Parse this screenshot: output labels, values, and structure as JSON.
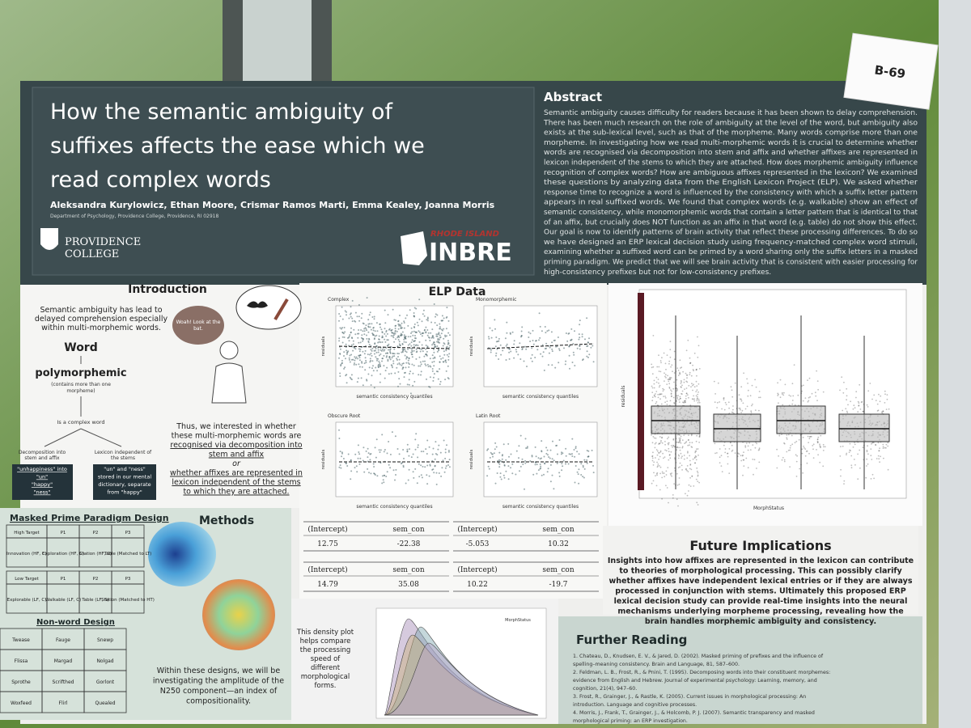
{
  "sign": "B-69",
  "header": {
    "title_lines": [
      "How the semantic ambiguity of",
      "suffixes affects the ease which we",
      "read complex words"
    ],
    "authors": "Aleksandra Kurylowicz, Ethan Moore, Crismar Ramos Marti, Emma Kealey, Joanna Morris",
    "department": "Department of Psychology, Providence College, Providence, RI 02918",
    "college_logo": [
      "PROVIDENCE",
      "COLLEGE"
    ],
    "inbre_region": "RHODE ISLAND",
    "inbre_name": "INBRE"
  },
  "abstract": {
    "heading": "Abstract",
    "lines": [
      "Semantic ambiguity causes difficulty for readers because it has been shown to delay comprehension.",
      "There has been much research on the role of ambiguity at the level of the word, but ambiguity also",
      "exists at the sub-lexical level, such as that of the morpheme.  Many words comprise more than one",
      "morpheme.  In investigating how we read multi-morphemic words it is crucial to determine  whether",
      "words are recognised via  decomposition into stem and affix and whether  affixes are represented  in",
      "lexicon independent of the stems to which they are attached.  How does morphemic ambiguity influence",
      "recognition of complex words?  How are ambiguous affixes represented in the lexicon?  We examined",
      "these questions by analyzing data from the English Lexicon Project (ELP).  We asked whether",
      "response time to recognize a word is influenced by the consistency with which a suffix letter pattern",
      "appears in real suffixed words.  We found that complex words (e.g. walkable)  show an effect of",
      "semantic consistency, while monomorphemic words that contain a letter pattern that is identical to that",
      "of an affix, but crucially does NOT function as an affix in that word (e.g. table) do not show this effect.",
      "Our goal is now to identify patterns of brain activity that reflect these processing differences.  To do so",
      "we have designed an ERP lexical decision study using frequency-matched complex word stimuli,",
      "examining whether a suffixed word can be primed by a word sharing only the suffix letters in a masked",
      "priming paradigm.  We predict that we will see brain activity that is consistent with easier processing for",
      "high-consistency prefixes but not for low-consistency prefixes."
    ]
  },
  "introduction": {
    "heading": "Introduction",
    "lines": [
      "Semantic ambiguity has lead to",
      "delayed comprehension especially",
      "within multi-morphemic words."
    ],
    "bubble": [
      "Woah! Look at the",
      "bat."
    ],
    "word": "Word",
    "polymorphemic": "polymorphemic",
    "poly_note": [
      "(contains more than one",
      "morpheme)"
    ],
    "complex_word": "Is a complex word",
    "decomposition": [
      "Decomposition into",
      "stem and affix"
    ],
    "lexicon": [
      "Lexicon independent of",
      "the stems"
    ],
    "decomposition_box": [
      "\"unhappiness\" into",
      "\"un\"",
      "\"happy\"",
      "\"ness\""
    ],
    "lexicon_box": [
      "\"un\" and \"ness\"",
      "stored in our mental",
      "dictionary, separate",
      "from \"happy\""
    ],
    "right_lines": [
      "Thus, we interested in whether",
      "these multi-morphemic words are",
      "recognised via decomposition into",
      "stem and affix",
      "or",
      "whether affixes are represented  in",
      "lexicon independent of the stems",
      "to which they are attached."
    ]
  },
  "elp": {
    "heading": "ELP Data",
    "plots": [
      {
        "title": "Complex",
        "x_label": "semantic consistency quantiles",
        "y_label": "residuals"
      },
      {
        "title": "Monomorphemic",
        "x_label": "semantic consistency quantiles",
        "y_label": "residuals"
      },
      {
        "title": "Obscure Root",
        "x_label": "semantic consistency quantiles",
        "y_label": "residuals"
      },
      {
        "title": "Latin Root",
        "x_label": "semantic consistency quantiles",
        "y_label": "residuals"
      }
    ],
    "tables": [
      [
        [
          "(Intercept)",
          "sem_con"
        ],
        [
          "12.75",
          "-22.38"
        ]
      ],
      [
        [
          "(Intercept)",
          "sem_con"
        ],
        [
          "-5.053",
          "10.32"
        ]
      ],
      [
        [
          "(Intercept)",
          "sem_con"
        ],
        [
          "14.79",
          "35.08"
        ]
      ],
      [
        [
          "(Intercept)",
          "sem_con"
        ],
        [
          "10.22",
          "-19.7"
        ]
      ]
    ]
  },
  "boxplot": {
    "y_label": "residuals",
    "x_label": "MorphStatus"
  },
  "future": {
    "heading": "Future Implications",
    "lines": [
      "Insights into how affixes are represented in the lexicon can contribute",
      "to theories of morphological processing. This can possibly clarify",
      "whether affixes have independent lexical entries or if they are always",
      "processed in conjunction with stems. Ultimately this proposed ERP",
      "lexical decision study can provide real-time insights into the neural",
      "mechanisms underlying morpheme processing, revealing how the",
      "brain handles morphemic ambiguity and consistency."
    ]
  },
  "masked": {
    "heading": "Masked Prime Paradigm Design",
    "high_table": [
      [
        "High Target",
        "P1",
        "P2",
        "P3"
      ],
      [
        "Innovation (HF, C)",
        "Exploration (HF, C)",
        "Station (HF, S)",
        "Table (Matched to LT)"
      ]
    ],
    "low_table": [
      [
        "Low Target",
        "P1",
        "P2",
        "P3"
      ],
      [
        "Explorable (LF, C)",
        "Walkable (LF, C)",
        "Table (LF, S)",
        "Station (Matched to HT)"
      ]
    ],
    "nonword_heading": "Non-word Design",
    "nonword_table": [
      [
        "Twease",
        "Fauge",
        "Snewp"
      ],
      [
        "Flissa",
        "Margad",
        "Nolgad"
      ],
      [
        "Sprothe",
        "Scrifthed",
        "Gorlont"
      ],
      [
        "Woxfeed",
        "Flirl",
        "Quealed"
      ]
    ]
  },
  "methods": {
    "heading": "Methods",
    "lines": [
      "Within these designs, we will be",
      "investigating the amplitude of the",
      "N250 component—an index of",
      "compositionality."
    ]
  },
  "density": {
    "lines": [
      "This density plot",
      "helps compare",
      "the processing",
      "speed of",
      "different",
      "morphological",
      "forms."
    ],
    "legend_title": "MorphStatus"
  },
  "further": {
    "heading": "Further Reading",
    "lines": [
      "1.  Chateau, D., Knudsen, E. V., & Jared, D. (2002). Masked priming of prefixes and the influence of",
      "     spelling–meaning consistency. Brain and Language, 81, 587–600.",
      "2.  Feldman, L. B., Frost, R., & Pnini, T. (1995). Decomposing words into their constituent morphemes:",
      "     evidence from English and Hebrew. Journal of experimental psychology: Learning, memory, and",
      "     cognition, 21(4), 947–60.",
      "3.  Frost, R., Grainger, J., & Rastle, K. (2005). Current issues in morphological processing: An",
      "     introduction. Language and cognitive processes.",
      "4.  Morris, J., Frank, T., Grainger, J., & Holcomb, P. J. (2007). Semantic transparency and masked",
      "     morphological priming: an ERP investigation."
    ]
  }
}
